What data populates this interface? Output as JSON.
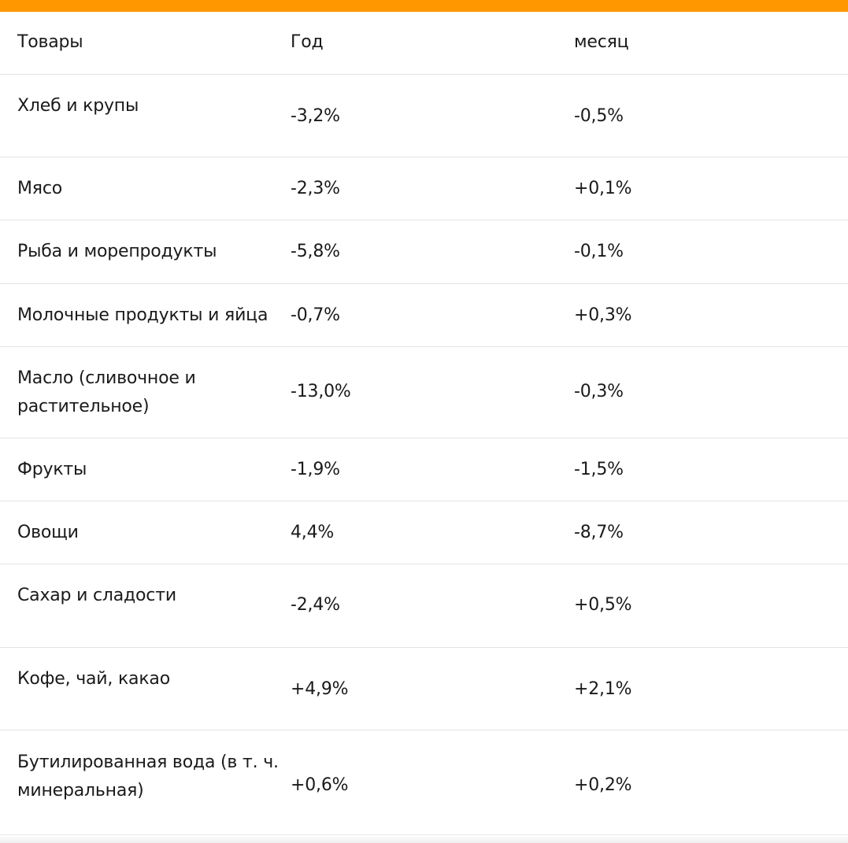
{
  "accent_color": "#ff9800",
  "table": {
    "headers": [
      "Товары",
      "Год",
      "месяц"
    ],
    "rows": [
      {
        "product": "Хлеб и крупы",
        "year": "-3,2%",
        "month": "-0,5%"
      },
      {
        "product": "Мясо",
        "year": "-2,3%",
        "month": "+0,1%"
      },
      {
        "product": "Рыба и морепродукты",
        "year": "-5,8%",
        "month": "-0,1%"
      },
      {
        "product": "Молочные продукты и яйца",
        "year": "-0,7%",
        "month": "+0,3%"
      },
      {
        "product": "Масло (сливочное и растительное)",
        "year": "-13,0%",
        "month": "-0,3%"
      },
      {
        "product": "Фрукты",
        "year": "-1,9%",
        "month": "-1,5%"
      },
      {
        "product": "Овощи",
        "year": "4,4%",
        "month": "-8,7%"
      },
      {
        "product": "Сахар и сладости",
        "year": "-2,4%",
        "month": "+0,5%"
      },
      {
        "product": "Кофе, чай, какао",
        "year": "+4,9%",
        "month": "+2,1%"
      },
      {
        "product": "Бутилированная вода (в т. ч. минеральная)",
        "year": "+0,6%",
        "month": "+0,2%"
      }
    ]
  }
}
